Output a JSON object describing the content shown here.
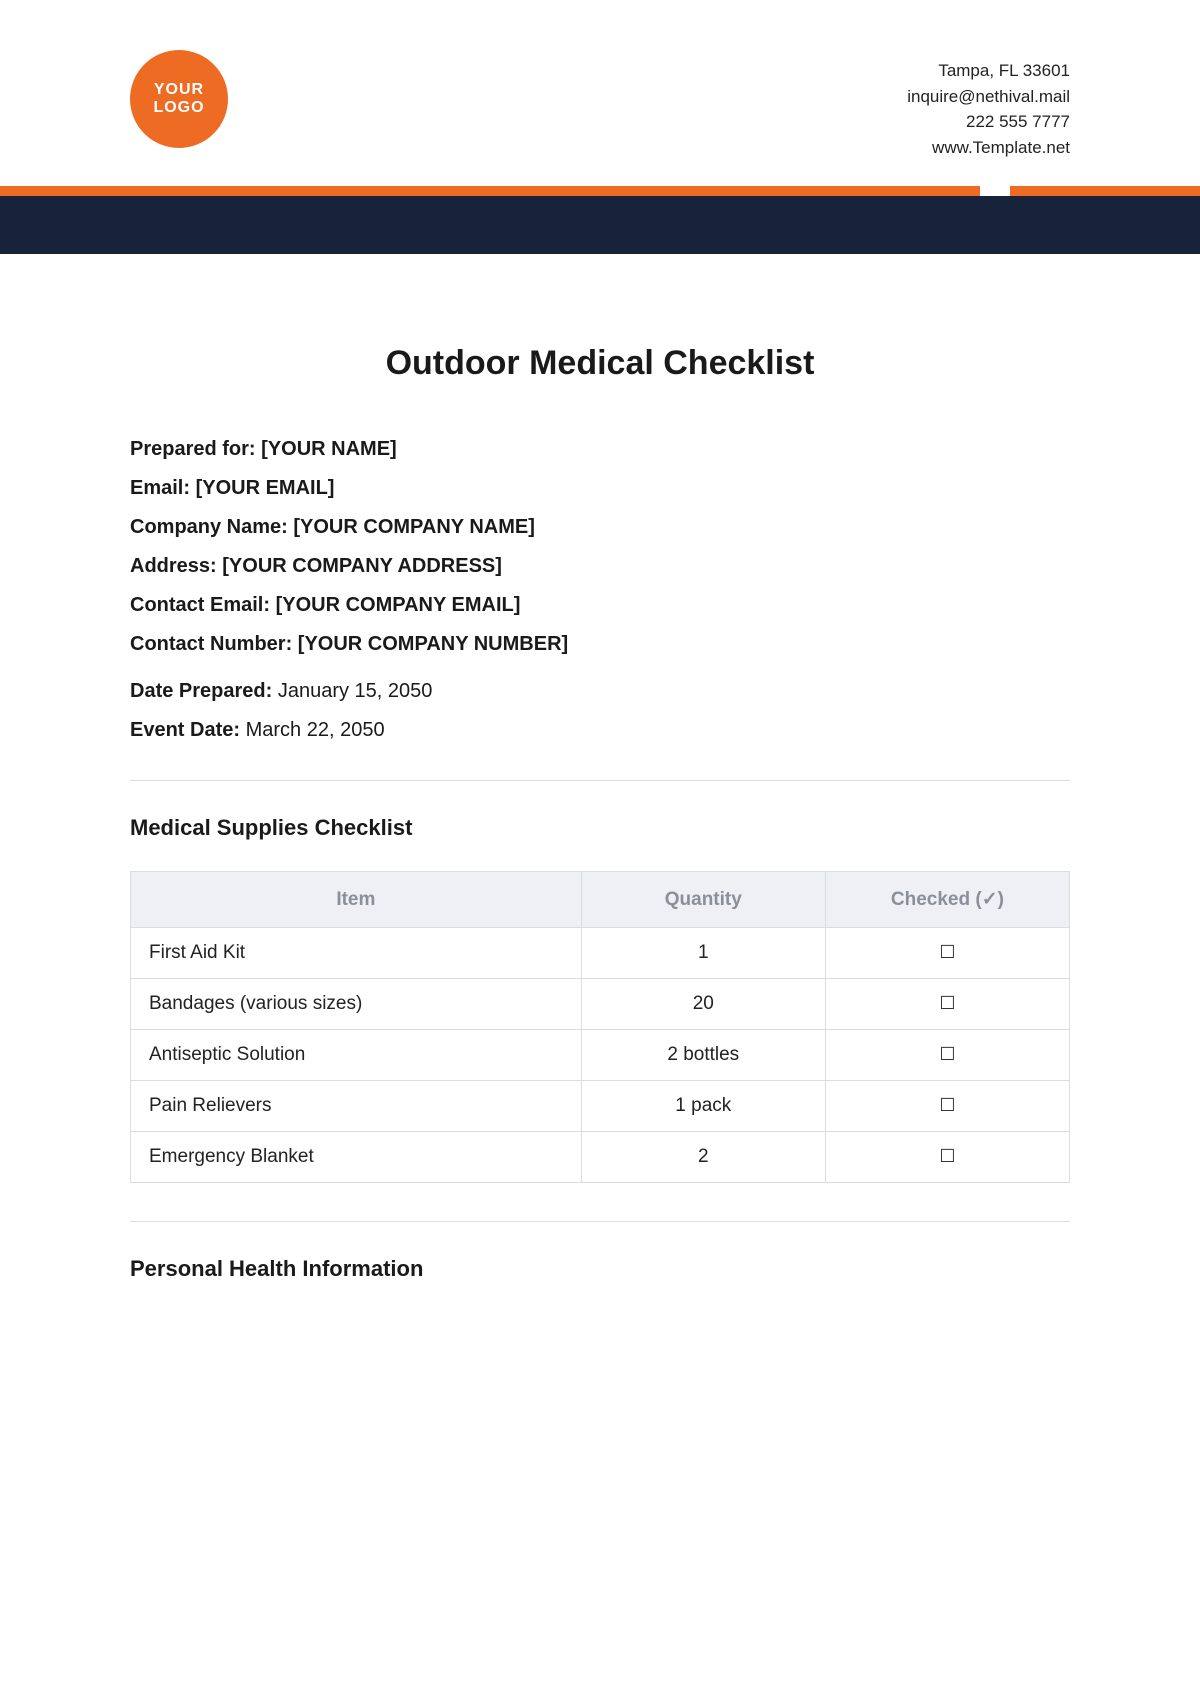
{
  "header": {
    "logo": {
      "line1": "YOUR",
      "line2": "LOGO",
      "bg": "#ed6b23"
    },
    "contact": {
      "address": "Tampa, FL 33601",
      "email": "inquire@nethival.mail",
      "phone": "222 555 7777",
      "site": "www.Template.net"
    },
    "accent_color": "#ed6b23",
    "navy_color": "#17223b"
  },
  "title": "Outdoor Medical Checklist",
  "info": {
    "prepared_for": {
      "label": "Prepared for:",
      "value": "[YOUR NAME]"
    },
    "email": {
      "label": "Email:",
      "value": "[YOUR EMAIL]"
    },
    "company_name": {
      "label": "Company Name:",
      "value": "[YOUR COMPANY NAME]"
    },
    "address": {
      "label": "Address:",
      "value": "[YOUR COMPANY ADDRESS]"
    },
    "contact_email": {
      "label": "Contact Email:",
      "value": "[YOUR COMPANY EMAIL]"
    },
    "contact_number": {
      "label": "Contact Number:",
      "value": "[YOUR COMPANY NUMBER]"
    },
    "date_prepared": {
      "label": "Date Prepared:",
      "value": "January 15, 2050"
    },
    "event_date": {
      "label": "Event Date:",
      "value": "March 22, 2050"
    }
  },
  "sections": {
    "supplies": {
      "heading": "Medical Supplies Checklist",
      "columns": [
        "Item",
        "Quantity",
        "Checked (✓)"
      ],
      "rows": [
        {
          "item": "First Aid Kit",
          "qty": "1",
          "checked": "☐"
        },
        {
          "item": "Bandages (various sizes)",
          "qty": "20",
          "checked": "☐"
        },
        {
          "item": "Antiseptic Solution",
          "qty": "2 bottles",
          "checked": "☐"
        },
        {
          "item": "Pain Relievers",
          "qty": "1 pack",
          "checked": "☐"
        },
        {
          "item": "Emergency Blanket",
          "qty": "2",
          "checked": "☐"
        }
      ]
    },
    "personal_health": {
      "heading": "Personal Health Information"
    }
  },
  "table_style": {
    "header_bg": "#eef0f6",
    "header_text": "#8a8f99",
    "border": "#d9dce3"
  }
}
